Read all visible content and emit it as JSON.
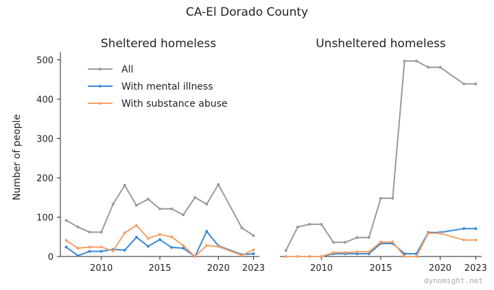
{
  "figure": {
    "suptitle": "CA-El Dorado County",
    "ylabel": "Number of people",
    "watermark": "dynomight.net"
  },
  "colors": {
    "All": "#999999",
    "With mental illness": "#3a86d4",
    "With substance abuse": "#f5a066"
  },
  "chart_data": [
    {
      "type": "line",
      "title": "Sheltered homeless",
      "xlabel": "",
      "ylabel": "Number of people",
      "xlim": [
        2006.5,
        2023.5
      ],
      "ylim": [
        0,
        520
      ],
      "x_ticks": [
        2010,
        2015,
        2020,
        2023
      ],
      "y_ticks": [
        0,
        100,
        200,
        300,
        400,
        500
      ],
      "legend": "upper-left",
      "grid": false,
      "x": [
        2007,
        2008,
        2009,
        2010,
        2011,
        2012,
        2013,
        2014,
        2015,
        2016,
        2017,
        2018,
        2019,
        2020,
        2022,
        2023
      ],
      "series": [
        {
          "name": "All",
          "values": [
            92,
            75,
            62,
            62,
            133,
            181,
            130,
            146,
            121,
            121,
            106,
            150,
            133,
            183,
            73,
            53
          ]
        },
        {
          "name": "With mental illness",
          "values": [
            24,
            2,
            13,
            13,
            18,
            16,
            49,
            26,
            43,
            23,
            21,
            0,
            64,
            27,
            5,
            7
          ]
        },
        {
          "name": "With substance abuse",
          "values": [
            41,
            21,
            24,
            24,
            14,
            60,
            79,
            46,
            56,
            50,
            28,
            0,
            28,
            25,
            3,
            17
          ]
        }
      ]
    },
    {
      "type": "line",
      "title": "Unsheltered homeless",
      "xlabel": "",
      "ylabel": "",
      "xlim": [
        2006.5,
        2023.5
      ],
      "ylim": [
        0,
        520
      ],
      "x_ticks": [
        2010,
        2015,
        2020,
        2023
      ],
      "y_ticks": [],
      "grid": false,
      "x": [
        2007,
        2008,
        2009,
        2010,
        2011,
        2012,
        2013,
        2014,
        2015,
        2016,
        2017,
        2018,
        2019,
        2020,
        2022,
        2023
      ],
      "series": [
        {
          "name": "All",
          "values": [
            15,
            75,
            82,
            82,
            36,
            36,
            48,
            48,
            148,
            148,
            497,
            497,
            481,
            481,
            439,
            439
          ]
        },
        {
          "name": "With mental illness",
          "values": [
            0,
            0,
            0,
            0,
            7,
            7,
            7,
            7,
            33,
            33,
            7,
            7,
            61,
            61,
            71,
            71
          ]
        },
        {
          "name": "With substance abuse",
          "values": [
            0,
            0,
            0,
            0,
            10,
            10,
            12,
            12,
            37,
            37,
            0,
            0,
            59,
            59,
            42,
            42
          ]
        }
      ]
    }
  ]
}
